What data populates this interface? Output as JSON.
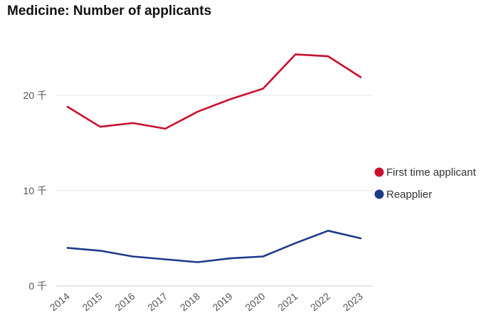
{
  "chart_data": {
    "type": "line",
    "title": "Medicine: Number of applicants",
    "xlabel": "",
    "ylabel": "",
    "x": [
      "2014",
      "2015",
      "2016",
      "2017",
      "2018",
      "2019",
      "2020",
      "2021",
      "2022",
      "2023"
    ],
    "y_ticks": [
      {
        "value": 0,
        "label": "0 千"
      },
      {
        "value": 10000,
        "label": "10 千"
      },
      {
        "value": 20000,
        "label": "20 千"
      }
    ],
    "ylim": [
      0,
      26000
    ],
    "grid": true,
    "legend_position": "right",
    "series": [
      {
        "name": "First time applicant",
        "color": "#c8102e",
        "values": [
          18800,
          16700,
          17100,
          16500,
          18300,
          19600,
          20700,
          24300,
          24100,
          21900
        ]
      },
      {
        "name": "Reapplier",
        "color": "#1f3a8a",
        "values": [
          4000,
          3700,
          3100,
          2800,
          2500,
          2900,
          3100,
          4500,
          5800,
          5000
        ]
      }
    ]
  }
}
